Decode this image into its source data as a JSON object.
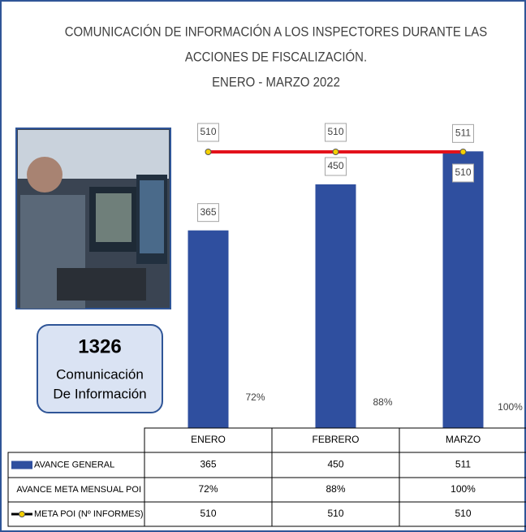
{
  "chart_data": {
    "type": "bar_line",
    "title": [
      "COMUNICACIÓN DE INFORMACIÓN A LOS INSPECTORES DURANTE LAS",
      "ACCIONES DE FISCALIZACIÓN.",
      "ENERO - MARZO 2022"
    ],
    "categories": [
      "ENERO",
      "FEBRERO",
      "MARZO"
    ],
    "ylim": [
      0,
      600
    ],
    "series": [
      {
        "name": "AVANCE GENERAL",
        "type": "bar",
        "color": "#2f4f9f",
        "values": [
          365,
          450,
          511
        ]
      },
      {
        "name": "AVANCE META MENSUAL POI",
        "type": "text",
        "values": [
          72,
          88,
          100
        ],
        "value_labels": [
          "72%",
          "88%",
          "100%"
        ]
      },
      {
        "name": "META POI (Nº INFORMES)",
        "type": "line",
        "color": "#e3121b",
        "marker_color": "#f5d000",
        "values": [
          510,
          510,
          510
        ]
      }
    ],
    "annotation": {
      "number": 1326,
      "lines": [
        "Comunicación",
        "De Información"
      ]
    }
  }
}
